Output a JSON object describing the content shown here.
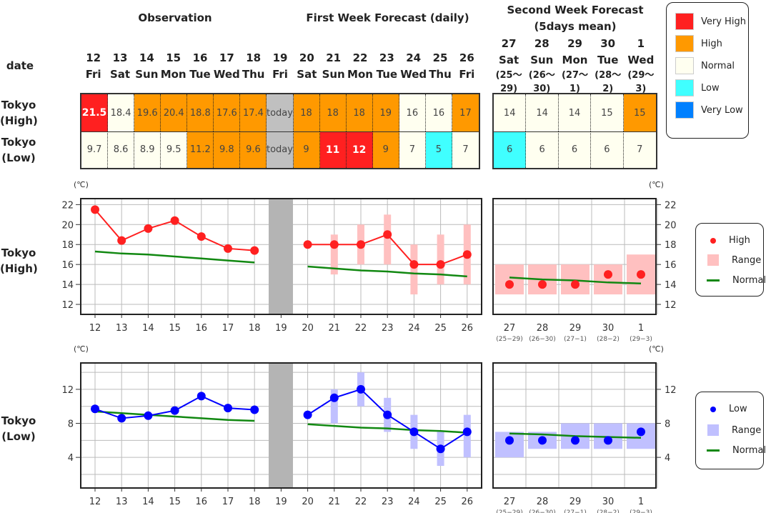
{
  "headers": {
    "observation": "Observation",
    "first_week": "First Week Forecast (daily)",
    "second_week_l1": "Second Week Forecast",
    "second_week_l2": "(5days mean)",
    "date": "date"
  },
  "row_labels": {
    "high": [
      "Tokyo",
      "(High)"
    ],
    "low": [
      "Tokyo",
      "(Low)"
    ]
  },
  "colors": {
    "very_high": "#ff2020",
    "high": "#ff9900",
    "normal": "#fffff0",
    "low": "#40ffff",
    "very_low": "#0080ff",
    "today": "#c0c0c0"
  },
  "legend": [
    {
      "key": "very_high",
      "label": "Very High"
    },
    {
      "key": "high",
      "label": "High"
    },
    {
      "key": "normal",
      "label": "Normal"
    },
    {
      "key": "low",
      "label": "Low"
    },
    {
      "key": "very_low",
      "label": "Very Low"
    }
  ],
  "dates": [
    {
      "day": "12",
      "wd": "Fri"
    },
    {
      "day": "13",
      "wd": "Sat"
    },
    {
      "day": "14",
      "wd": "Sun"
    },
    {
      "day": "15",
      "wd": "Mon"
    },
    {
      "day": "16",
      "wd": "Tue"
    },
    {
      "day": "17",
      "wd": "Wed"
    },
    {
      "day": "18",
      "wd": "Thu"
    },
    {
      "day": "19",
      "wd": "Fri"
    },
    {
      "day": "20",
      "wd": "Sat"
    },
    {
      "day": "21",
      "wd": "Sun"
    },
    {
      "day": "22",
      "wd": "Mon"
    },
    {
      "day": "23",
      "wd": "Tue"
    },
    {
      "day": "24",
      "wd": "Wed"
    },
    {
      "day": "25",
      "wd": "Thu"
    },
    {
      "day": "26",
      "wd": "Fri"
    }
  ],
  "week2_dates": [
    {
      "day": "27",
      "wd": "Sat",
      "r1": "(25〜",
      "r2": "29)",
      "range": "(25−29)"
    },
    {
      "day": "28",
      "wd": "Sun",
      "r1": "(26〜",
      "r2": "30)",
      "range": "(26−30)"
    },
    {
      "day": "29",
      "wd": "Mon",
      "r1": "(27〜",
      "r2": "1)",
      "range": "(27−1)"
    },
    {
      "day": "30",
      "wd": "Tue",
      "r1": "(28〜",
      "r2": "2)",
      "range": "(28−2)"
    },
    {
      "day": "1",
      "wd": "Wed",
      "r1": "(29〜",
      "r2": "3)",
      "range": "(29−3)"
    }
  ],
  "table": {
    "high": [
      [
        "21.5",
        "very_high"
      ],
      [
        "18.4",
        "normal"
      ],
      [
        "19.6",
        "high"
      ],
      [
        "20.4",
        "high"
      ],
      [
        "18.8",
        "high"
      ],
      [
        "17.6",
        "high"
      ],
      [
        "17.4",
        "high"
      ],
      [
        "today",
        "today"
      ],
      [
        "18",
        "high"
      ],
      [
        "18",
        "high"
      ],
      [
        "18",
        "high"
      ],
      [
        "19",
        "high"
      ],
      [
        "16",
        "normal"
      ],
      [
        "16",
        "normal"
      ],
      [
        "17",
        "high"
      ]
    ],
    "high_week2": [
      [
        "14",
        "normal"
      ],
      [
        "14",
        "normal"
      ],
      [
        "14",
        "normal"
      ],
      [
        "15",
        "normal"
      ],
      [
        "15",
        "high"
      ]
    ],
    "low": [
      [
        "9.7",
        "normal"
      ],
      [
        "8.6",
        "normal"
      ],
      [
        "8.9",
        "normal"
      ],
      [
        "9.5",
        "normal"
      ],
      [
        "11.2",
        "high"
      ],
      [
        "9.8",
        "high"
      ],
      [
        "9.6",
        "high"
      ],
      [
        "today",
        "today"
      ],
      [
        "9",
        "high"
      ],
      [
        "11",
        "very_high"
      ],
      [
        "12",
        "very_high"
      ],
      [
        "9",
        "high"
      ],
      [
        "7",
        "normal"
      ],
      [
        "5",
        "low"
      ],
      [
        "7",
        "normal"
      ]
    ],
    "low_week2": [
      [
        "6",
        "low"
      ],
      [
        "6",
        "normal"
      ],
      [
        "6",
        "normal"
      ],
      [
        "6",
        "normal"
      ],
      [
        "7",
        "normal"
      ]
    ]
  },
  "chart_data": [
    {
      "type": "line",
      "name": "Tokyo (High)",
      "unit": "(℃)",
      "ylim": [
        11,
        22.6
      ],
      "yticks": [
        12,
        14,
        16,
        18,
        20,
        22
      ],
      "grid": true,
      "color": "#ff2020",
      "range_color": "#ffc0c0",
      "legend": {
        "placement": "right",
        "items": [
          "High",
          "Range",
          "Normal"
        ]
      },
      "observed": {
        "x": [
          "12",
          "13",
          "14",
          "15",
          "16",
          "17",
          "18"
        ],
        "values": [
          21.5,
          18.4,
          19.6,
          20.4,
          18.8,
          17.6,
          17.4
        ],
        "normal": [
          17.3,
          17.1,
          17.0,
          16.8,
          16.6,
          16.4,
          16.2
        ]
      },
      "today": "19",
      "forecast": {
        "x": [
          "20",
          "21",
          "22",
          "23",
          "24",
          "25",
          "26"
        ],
        "values": [
          18,
          18,
          18,
          19,
          16,
          16,
          17
        ],
        "range": [
          null,
          [
            15,
            19
          ],
          [
            16,
            20
          ],
          [
            16,
            21
          ],
          [
            13,
            18
          ],
          [
            14,
            19
          ],
          [
            14,
            20
          ]
        ],
        "normal": [
          15.8,
          15.6,
          15.4,
          15.3,
          15.1,
          15.0,
          14.8
        ]
      },
      "week2": {
        "x": [
          "27",
          "28",
          "29",
          "30",
          "1"
        ],
        "values": [
          14,
          14,
          14,
          15,
          15
        ],
        "range": [
          [
            13,
            16
          ],
          [
            13,
            16
          ],
          [
            13,
            16
          ],
          [
            13,
            16
          ],
          [
            13,
            17
          ]
        ],
        "normal": [
          14.7,
          14.5,
          14.4,
          14.2,
          14.1
        ]
      }
    },
    {
      "type": "line",
      "name": "Tokyo (Low)",
      "unit": "(℃)",
      "ylim": [
        0.4,
        15.1
      ],
      "yticks": [
        4,
        8,
        12
      ],
      "grid": true,
      "color": "#0000ff",
      "range_color": "#c0c0ff",
      "legend": {
        "placement": "right",
        "items": [
          "Low",
          "Range",
          "Normal"
        ]
      },
      "observed": {
        "x": [
          "12",
          "13",
          "14",
          "15",
          "16",
          "17",
          "18"
        ],
        "values": [
          9.7,
          8.6,
          8.9,
          9.5,
          11.2,
          9.8,
          9.6
        ],
        "normal": [
          9.4,
          9.2,
          9.0,
          8.8,
          8.6,
          8.4,
          8.3
        ]
      },
      "today": "19",
      "forecast": {
        "x": [
          "20",
          "21",
          "22",
          "23",
          "24",
          "25",
          "26"
        ],
        "values": [
          9,
          11,
          12,
          9,
          7,
          5,
          7
        ],
        "range": [
          null,
          [
            8,
            12
          ],
          [
            10,
            14
          ],
          [
            7,
            11
          ],
          [
            5,
            9
          ],
          [
            3,
            7
          ],
          [
            4,
            9
          ]
        ],
        "normal": [
          7.9,
          7.7,
          7.5,
          7.4,
          7.2,
          7.1,
          6.9
        ]
      },
      "week2": {
        "x": [
          "27",
          "28",
          "29",
          "30",
          "1"
        ],
        "values": [
          6,
          6,
          6,
          6,
          7
        ],
        "range": [
          [
            4,
            7
          ],
          [
            5,
            7
          ],
          [
            5,
            8
          ],
          [
            5,
            8
          ],
          [
            5,
            8
          ]
        ],
        "normal": [
          6.8,
          6.7,
          6.5,
          6.4,
          6.3
        ]
      }
    }
  ]
}
